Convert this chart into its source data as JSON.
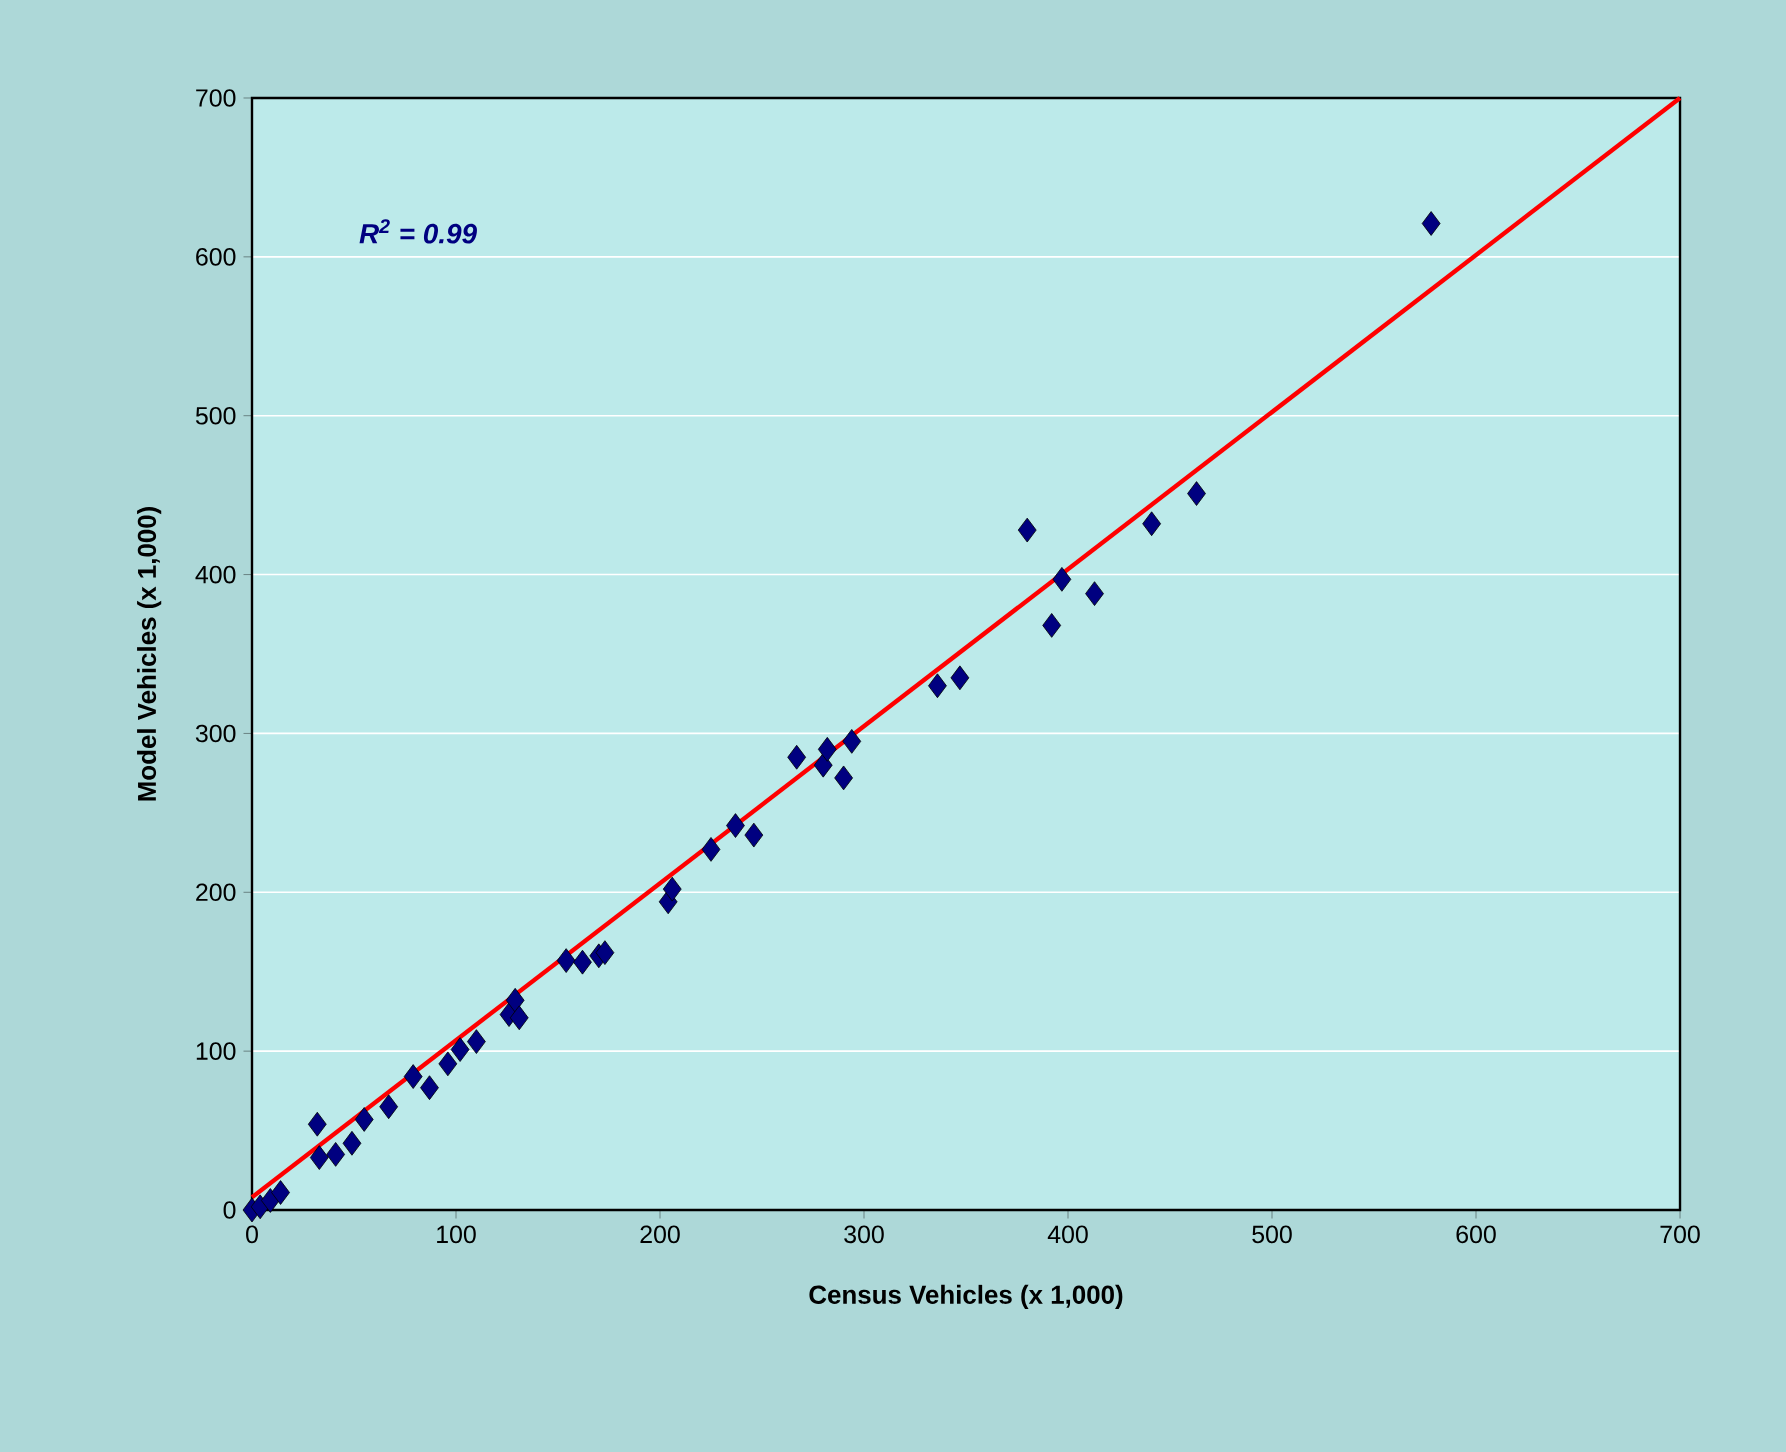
{
  "chart_data": {
    "type": "scatter",
    "xlabel": "Census Vehicles (x 1,000)",
    "ylabel": "Model Vehicles (x 1,000)",
    "annotations": [
      "R$^{2}$ = 0.99"
    ],
    "xlim": [
      0,
      700
    ],
    "ylim": [
      0,
      700
    ],
    "xticks": [
      0,
      100,
      200,
      300,
      400,
      500,
      600,
      700
    ],
    "yticks": [
      0,
      100,
      200,
      300,
      400,
      500,
      600,
      700
    ],
    "grid": "y",
    "marker": "diamond",
    "series": [
      {
        "color": "#000080",
        "x": [
          0,
          4,
          9,
          14,
          32,
          33,
          41,
          49,
          55,
          67,
          79,
          87,
          96,
          102,
          110,
          126,
          129,
          131,
          154,
          162,
          170,
          173,
          204,
          206,
          225,
          237,
          246,
          267,
          280,
          282,
          290,
          294,
          336,
          347,
          380,
          392,
          397,
          413,
          441,
          463,
          578
        ],
        "values": [
          0,
          2,
          6,
          11,
          54,
          33,
          35,
          42,
          57,
          65,
          84,
          77,
          92,
          101,
          106,
          123,
          132,
          121,
          157,
          156,
          160,
          162,
          194,
          202,
          227,
          242,
          236,
          285,
          280,
          290,
          272,
          295,
          330,
          335,
          428,
          368,
          397,
          388,
          432,
          451,
          621
        ]
      },
      {
        "type": "line",
        "color": "#ff0000",
        "marker": "none",
        "x": [
          0,
          700
        ],
        "values": [
          8,
          700
        ]
      }
    ]
  }
}
